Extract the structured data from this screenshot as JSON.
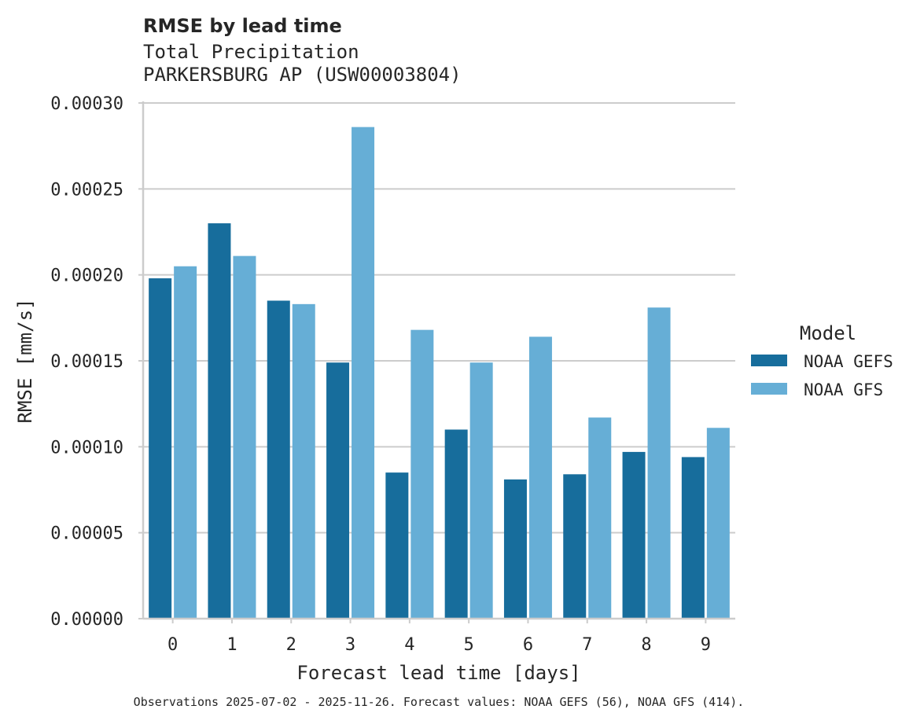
{
  "chart_data": {
    "type": "bar",
    "title": "RMSE by lead time",
    "subtitle_lines": [
      "Total Precipitation",
      "PARKERSBURG AP (USW00003804)"
    ],
    "xlabel": "Forecast lead time [days]",
    "ylabel": "RMSE [mm/s]",
    "ylim": [
      0,
      0.0003
    ],
    "yticks": [
      "0.00000",
      "0.00005",
      "0.00010",
      "0.00015",
      "0.00020",
      "0.00025",
      "0.00030"
    ],
    "ytick_values": [
      0,
      5e-05,
      0.0001,
      0.00015,
      0.0002,
      0.00025,
      0.0003
    ],
    "categories": [
      "0",
      "1",
      "2",
      "3",
      "4",
      "5",
      "6",
      "7",
      "8",
      "9"
    ],
    "grid": "horizontal",
    "legend": {
      "title": "Model",
      "placement": "right"
    },
    "series": [
      {
        "name": "NOAA GEFS",
        "color": "#176d9c",
        "values": [
          0.000198,
          0.00023,
          0.000185,
          0.000149,
          8.5e-05,
          0.00011,
          8.1e-05,
          8.4e-05,
          9.7e-05,
          9.4e-05
        ]
      },
      {
        "name": "NOAA GFS",
        "color": "#66aed6",
        "values": [
          0.000205,
          0.000211,
          0.000183,
          0.000286,
          0.000168,
          0.000149,
          0.000164,
          0.000117,
          0.000181,
          0.000111
        ]
      }
    ],
    "footnote": "Observations 2025-07-02 - 2025-11-26. Forecast values: NOAA GEFS (56), NOAA GFS (414)."
  }
}
